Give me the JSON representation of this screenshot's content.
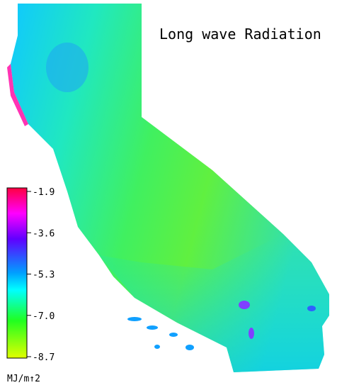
{
  "title": "Long wave Radiation",
  "legend": {
    "ticks": [
      "-1.9",
      "-3.6",
      "-5.3",
      "-7.0",
      "-8.7"
    ],
    "unit": "MJ/m↑2"
  }
}
